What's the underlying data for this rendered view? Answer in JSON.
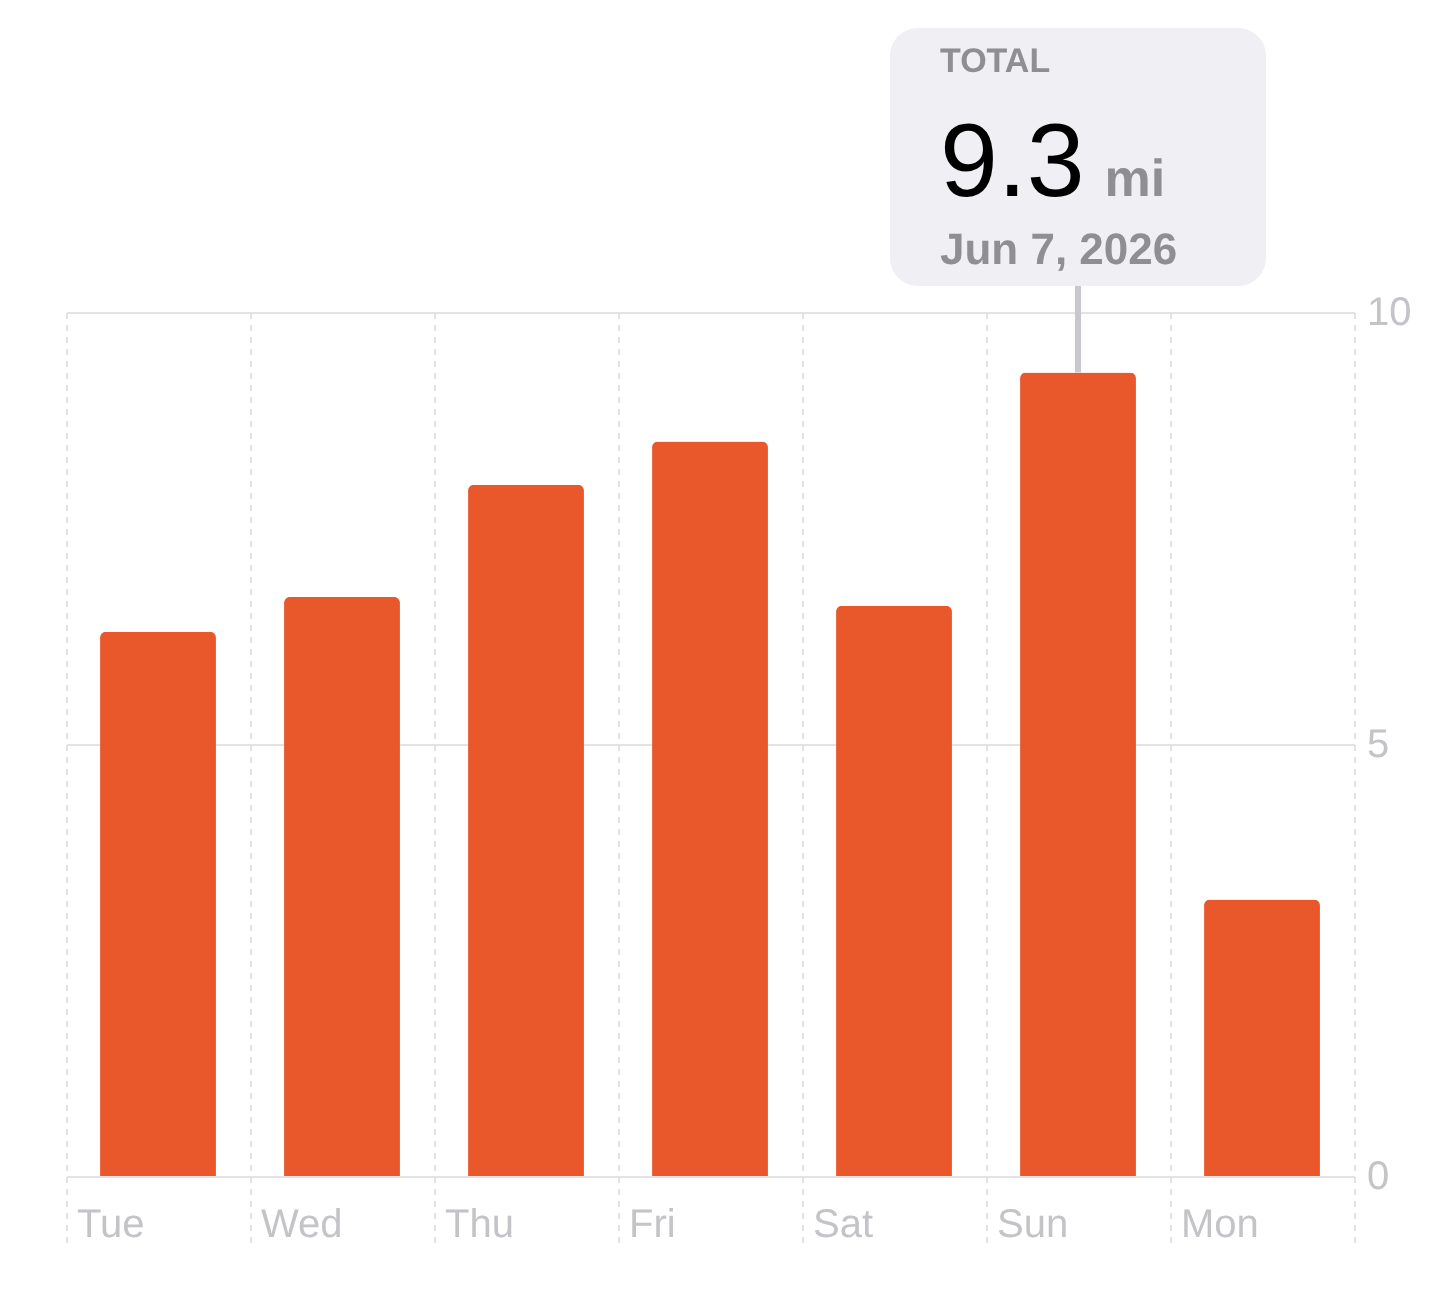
{
  "chart_data": {
    "type": "bar",
    "categories": [
      "Tue",
      "Wed",
      "Thu",
      "Fri",
      "Sat",
      "Sun",
      "Mon"
    ],
    "values": [
      6.3,
      6.7,
      8.0,
      8.5,
      6.6,
      9.3,
      3.2
    ],
    "color": "#e9582b",
    "ylim": [
      0,
      10
    ],
    "yticks": [
      0,
      5,
      10
    ],
    "grid": true,
    "annotations": [
      "TOTAL",
      {
        "text": "9.3 mi",
        "x": "Sun",
        "y": 9.3
      },
      {
        "text": "Jun 7, 2026",
        "x": "Sun",
        "y": 9.3
      }
    ]
  }
}
